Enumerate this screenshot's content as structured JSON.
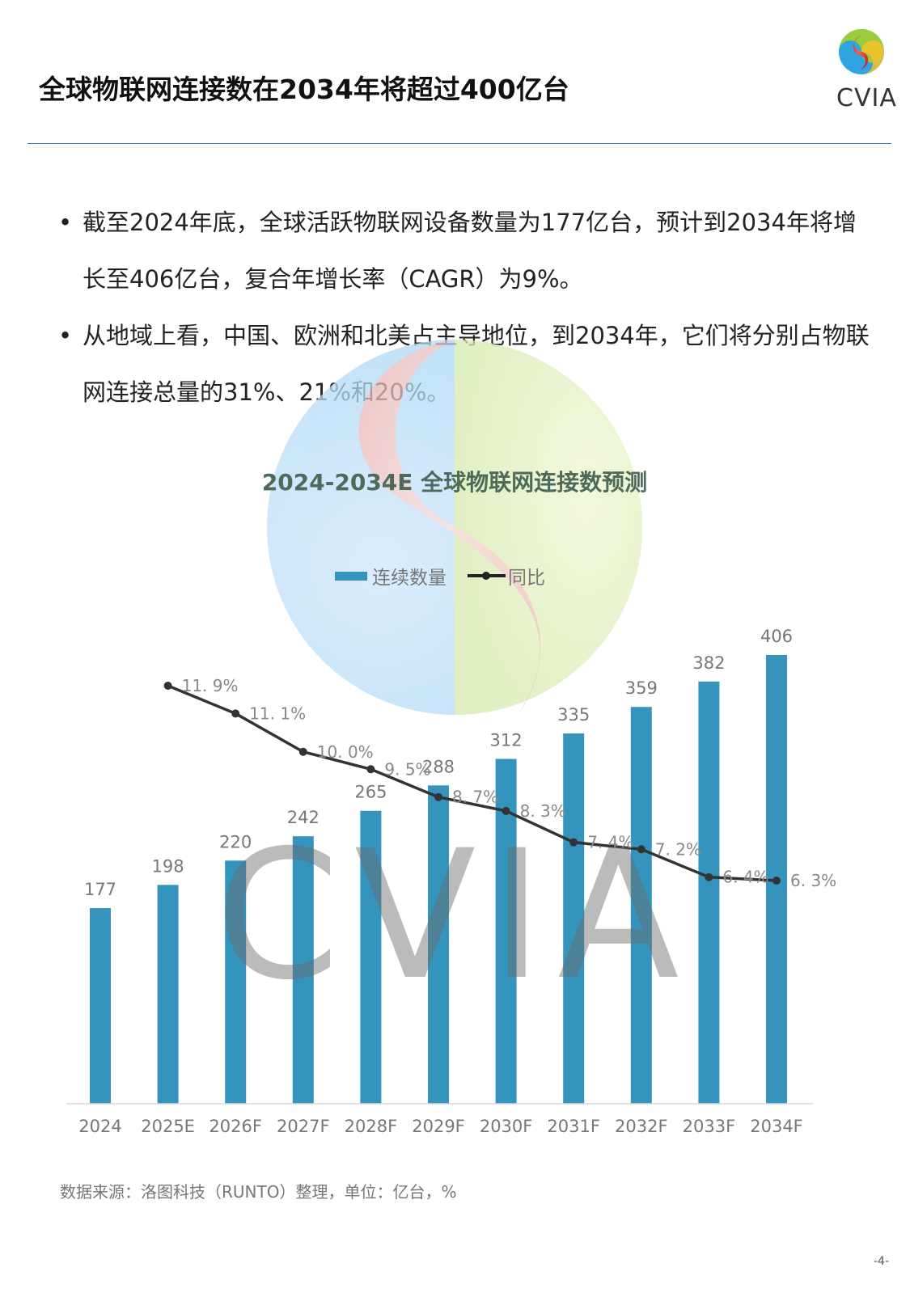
{
  "header": {
    "title": "全球物联网连接数在2034年将超过400亿台",
    "logo_text": "CVIA"
  },
  "bullets": [
    {
      "text": "截至2024年底，全球活跃物联网设备数量为177亿台，预计到2034年将增长至406亿台，复合年增长率（CAGR）为9%。"
    },
    {
      "text": "从地域上看，中国、欧洲和北美占主导地位，到2034年，它们将分别占物联网连接总量的31%、21%和20%。"
    }
  ],
  "source": "数据来源：洛图科技（RUNTO）整理，单位：亿台，%",
  "page_number": "-4-",
  "watermark_text": "CVIA",
  "colors": {
    "bar": "#3494bd",
    "line": "#333333",
    "rule": "#3a7fb0"
  },
  "chart_data": {
    "type": "bar",
    "title": "2024-2034E 全球物联网连接数预测",
    "categories": [
      "2024",
      "2025E",
      "2026F",
      "2027F",
      "2028F",
      "2029F",
      "2030F",
      "2031F",
      "2032F",
      "2033F",
      "2034F"
    ],
    "series": [
      {
        "name": "连续数量",
        "type": "bar",
        "values": [
          177,
          198,
          220,
          242,
          265,
          288,
          312,
          335,
          359,
          382,
          406
        ]
      },
      {
        "name": "同比",
        "type": "line",
        "values": [
          null,
          11.9,
          11.1,
          10.0,
          9.5,
          8.7,
          8.3,
          7.4,
          7.2,
          6.4,
          6.3
        ],
        "labels": [
          "",
          "11. 9%",
          "11. 1%",
          "10. 0%",
          "9. 5%",
          "8. 7%",
          "8. 3%",
          "7. 4%",
          "7. 2%",
          "6. 4%",
          "6. 3%"
        ]
      }
    ],
    "legend_position": "top-center",
    "grid": false
  }
}
